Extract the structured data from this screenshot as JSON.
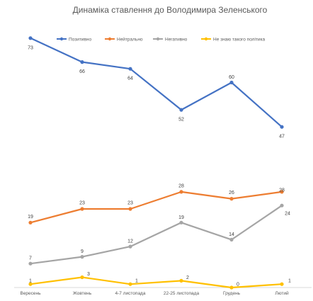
{
  "chart_data": {
    "type": "line",
    "title": "Динаміка ставлення до Володимира Зеленського",
    "categories": [
      "Вересень",
      "Жовтень",
      "4-7 листопада",
      "22-25 листопада",
      "Грудень",
      "Лютий"
    ],
    "ylim": [
      0,
      80
    ],
    "grid": false,
    "legend_position": "top",
    "series": [
      {
        "name": "Позитивно",
        "color": "#4472C4",
        "values": [
          73,
          66,
          64,
          52,
          60,
          47
        ]
      },
      {
        "name": "Нейтрально",
        "color": "#ED7D31",
        "values": [
          19,
          23,
          23,
          28,
          26,
          28
        ]
      },
      {
        "name": "Негативно",
        "color": "#A5A5A5",
        "values": [
          7,
          9,
          12,
          19,
          14,
          24
        ]
      },
      {
        "name": "Не знаю такого політика",
        "color": "#FFC000",
        "values": [
          1,
          3,
          1,
          2,
          0,
          1
        ]
      }
    ]
  }
}
